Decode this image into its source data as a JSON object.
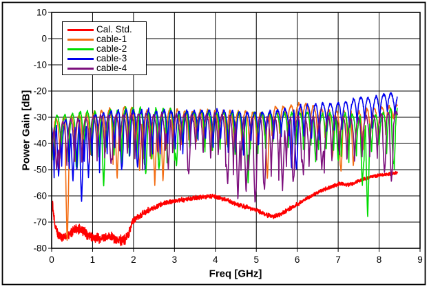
{
  "chart_data": {
    "type": "line",
    "title": "",
    "xlabel": "Freq [GHz]",
    "ylabel": "Power Gain [dB]",
    "xlim": [
      0,
      9
    ],
    "ylim": [
      -80,
      10
    ],
    "xticks": [
      0,
      1,
      2,
      3,
      4,
      5,
      6,
      7,
      8,
      9
    ],
    "yticks": [
      10,
      0,
      -10,
      -20,
      -30,
      -40,
      -50,
      -60,
      -70,
      -80
    ],
    "grid": true,
    "grid_color": "#000000",
    "background_color": "#ffffff",
    "x_end_ghz": 8.45,
    "ripple_period_ghz": 0.185,
    "legend": {
      "position": "top-left-inside",
      "entries": [
        {
          "label": "Cal. Std.",
          "color": "#ff0000"
        },
        {
          "label": "cable-1",
          "color": "#f36d13"
        },
        {
          "label": "cable-2",
          "color": "#00db00"
        },
        {
          "label": "cable-3",
          "color": "#0000ee"
        },
        {
          "label": "cable-4",
          "color": "#7d107d"
        }
      ]
    },
    "series": [
      {
        "name": "Cal. Std.",
        "color": "#ff0000",
        "kind": "noisy",
        "seed": 11,
        "trend": [
          [
            0,
            -70
          ],
          [
            0.01,
            -61
          ],
          [
            0.04,
            -66
          ],
          [
            0.08,
            -71
          ],
          [
            0.15,
            -74.5
          ],
          [
            0.3,
            -76
          ],
          [
            0.45,
            -74.5
          ],
          [
            0.6,
            -72.5
          ],
          [
            0.75,
            -73.5
          ],
          [
            0.9,
            -75
          ],
          [
            1.05,
            -76
          ],
          [
            1.2,
            -76
          ],
          [
            1.35,
            -75.5
          ],
          [
            1.5,
            -76
          ],
          [
            1.65,
            -77
          ],
          [
            1.8,
            -76.5
          ],
          [
            1.9,
            -73.5
          ],
          [
            2.0,
            -69
          ],
          [
            2.1,
            -68
          ],
          [
            2.3,
            -66
          ],
          [
            2.5,
            -64.5
          ],
          [
            2.7,
            -63
          ],
          [
            2.9,
            -62.3
          ],
          [
            3.1,
            -61.8
          ],
          [
            3.4,
            -61
          ],
          [
            3.7,
            -60.3
          ],
          [
            3.95,
            -60
          ],
          [
            4.2,
            -61.2
          ],
          [
            4.5,
            -63
          ],
          [
            4.8,
            -64.5
          ],
          [
            5.0,
            -65.5
          ],
          [
            5.2,
            -67
          ],
          [
            5.4,
            -68
          ],
          [
            5.6,
            -67
          ],
          [
            5.8,
            -65
          ],
          [
            6.0,
            -63.2
          ],
          [
            6.2,
            -61.2
          ],
          [
            6.4,
            -59.5
          ],
          [
            6.6,
            -58
          ],
          [
            6.8,
            -56.6
          ],
          [
            7.0,
            -55.6
          ],
          [
            7.1,
            -55.3
          ],
          [
            7.2,
            -55.9
          ],
          [
            7.35,
            -55.4
          ],
          [
            7.5,
            -54.2
          ],
          [
            7.7,
            -53.3
          ],
          [
            7.9,
            -52.4
          ],
          [
            8.1,
            -51.9
          ],
          [
            8.3,
            -51.5
          ],
          [
            8.45,
            -51.3
          ]
        ],
        "noise": [
          [
            0,
            2.2
          ],
          [
            1.85,
            2.2
          ],
          [
            2.1,
            1.6
          ],
          [
            2.5,
            1.1
          ],
          [
            5.0,
            1.0
          ],
          [
            8.45,
            0.7
          ]
        ]
      },
      {
        "name": "cable-1",
        "color": "#f36d13",
        "kind": "comb",
        "seed": 21,
        "x0": 0.02,
        "depth_var": 5,
        "envelope": [
          [
            0,
            -31,
            -44
          ],
          [
            0.5,
            -29,
            -44
          ],
          [
            1,
            -28,
            -43
          ],
          [
            1.5,
            -26.8,
            -43
          ],
          [
            2,
            -26.8,
            -44
          ],
          [
            2.5,
            -27.2,
            -45
          ],
          [
            3,
            -27.4,
            -41
          ],
          [
            3.5,
            -27.8,
            -38.5
          ],
          [
            4,
            -27.5,
            -40
          ],
          [
            4.5,
            -28,
            -41
          ],
          [
            5,
            -28.3,
            -38
          ],
          [
            5.4,
            -26,
            -35
          ],
          [
            6,
            -25,
            -34
          ],
          [
            6.4,
            -25.6,
            -35
          ],
          [
            6.8,
            -27,
            -38
          ],
          [
            7.2,
            -27.6,
            -42
          ],
          [
            7.6,
            -27.8,
            -41
          ],
          [
            8,
            -26.5,
            -35
          ],
          [
            8.45,
            -24.7,
            -30
          ]
        ],
        "dips": [
          [
            0.38,
            -78
          ],
          [
            1.6,
            -54
          ],
          [
            2.15,
            -51
          ],
          [
            2.52,
            -56
          ],
          [
            2.72,
            -55
          ],
          [
            5.27,
            -54
          ],
          [
            6.85,
            -46
          ],
          [
            7.07,
            -51
          ],
          [
            7.37,
            -49
          ]
        ]
      },
      {
        "name": "cable-2",
        "color": "#00db00",
        "kind": "comb",
        "seed": 31,
        "x0": 0.045,
        "depth_var": 6,
        "envelope": [
          [
            0,
            -30,
            -46
          ],
          [
            0.5,
            -28.5,
            -45
          ],
          [
            1,
            -27.5,
            -44
          ],
          [
            1.5,
            -26.8,
            -44
          ],
          [
            2,
            -26.8,
            -45
          ],
          [
            2.5,
            -27,
            -44
          ],
          [
            3,
            -27.4,
            -42
          ],
          [
            3.5,
            -28,
            -40
          ],
          [
            4,
            -28,
            -42
          ],
          [
            4.5,
            -28.5,
            -43
          ],
          [
            5,
            -29,
            -39
          ],
          [
            5.5,
            -29,
            -38
          ],
          [
            6,
            -28.8,
            -40
          ],
          [
            6.5,
            -28.6,
            -42
          ],
          [
            7,
            -29,
            -43
          ],
          [
            7.5,
            -29.5,
            -45
          ],
          [
            8,
            -28.5,
            -43
          ],
          [
            8.45,
            -26.5,
            -44
          ]
        ],
        "dips": [
          [
            0.62,
            -50
          ],
          [
            1.27,
            -57
          ],
          [
            2.3,
            -52
          ],
          [
            2.62,
            -50
          ],
          [
            3.05,
            -49
          ],
          [
            4.8,
            -55
          ],
          [
            6.45,
            -47
          ],
          [
            7.0,
            -47
          ],
          [
            7.59,
            -56
          ],
          [
            7.72,
            -69
          ],
          [
            8.35,
            -48
          ]
        ]
      },
      {
        "name": "cable-3",
        "color": "#0000ee",
        "kind": "comb",
        "seed": 41,
        "x0": 0.06,
        "depth_var": 7,
        "envelope": [
          [
            0,
            -32,
            -47
          ],
          [
            0.5,
            -30,
            -48
          ],
          [
            1,
            -29,
            -45
          ],
          [
            1.5,
            -28,
            -44
          ],
          [
            2,
            -27.5,
            -44
          ],
          [
            2.5,
            -27.5,
            -43
          ],
          [
            3,
            -27.5,
            -41
          ],
          [
            3.5,
            -28,
            -39
          ],
          [
            4,
            -27.5,
            -40
          ],
          [
            4.5,
            -28,
            -41
          ],
          [
            5,
            -28.3,
            -38
          ],
          [
            5.5,
            -27.5,
            -37
          ],
          [
            6,
            -26,
            -37
          ],
          [
            6.5,
            -25,
            -35
          ],
          [
            7,
            -24.3,
            -32.5
          ],
          [
            7.5,
            -23.3,
            -31
          ],
          [
            8,
            -22.3,
            -29.5
          ],
          [
            8.3,
            -21.2,
            -28.5
          ],
          [
            8.45,
            -22,
            -27.5
          ]
        ],
        "dips": [
          [
            0.17,
            -53
          ],
          [
            0.52,
            -55
          ],
          [
            0.73,
            -63
          ],
          [
            0.9,
            -53
          ],
          [
            1.71,
            -50
          ],
          [
            2.1,
            -49
          ],
          [
            5.86,
            -50
          ],
          [
            5.98,
            -50
          ]
        ]
      },
      {
        "name": "cable-4",
        "color": "#7d107d",
        "kind": "comb",
        "seed": 51,
        "x0": 0.0,
        "depth_var": 5,
        "envelope": [
          [
            0,
            -33,
            -48
          ],
          [
            0.5,
            -31,
            -47
          ],
          [
            1,
            -30,
            -46
          ],
          [
            1.5,
            -29.2,
            -45
          ],
          [
            2,
            -29,
            -46
          ],
          [
            2.5,
            -29,
            -46
          ],
          [
            3,
            -29,
            -44
          ],
          [
            3.5,
            -29.4,
            -42
          ],
          [
            4,
            -29.2,
            -46
          ],
          [
            4.5,
            -29.8,
            -51
          ],
          [
            5,
            -30.2,
            -52
          ],
          [
            5.5,
            -30.3,
            -51
          ],
          [
            6,
            -30,
            -49
          ],
          [
            6.5,
            -30,
            -47
          ],
          [
            7,
            -30.2,
            -45
          ],
          [
            7.5,
            -30.3,
            -45
          ],
          [
            8,
            -29,
            -43
          ],
          [
            8.45,
            -27.5,
            -42
          ]
        ],
        "dips": [
          [
            0.12,
            -50
          ],
          [
            1.45,
            -48
          ],
          [
            2.85,
            -50
          ],
          [
            3.35,
            -52
          ],
          [
            4.3,
            -56
          ],
          [
            4.55,
            -62
          ],
          [
            4.75,
            -59
          ],
          [
            4.97,
            -63
          ],
          [
            5.2,
            -58
          ],
          [
            5.64,
            -58
          ],
          [
            5.9,
            -55
          ],
          [
            6.15,
            -52
          ],
          [
            6.6,
            -50
          ],
          [
            8.13,
            -51
          ],
          [
            8.3,
            -55
          ]
        ]
      }
    ]
  }
}
